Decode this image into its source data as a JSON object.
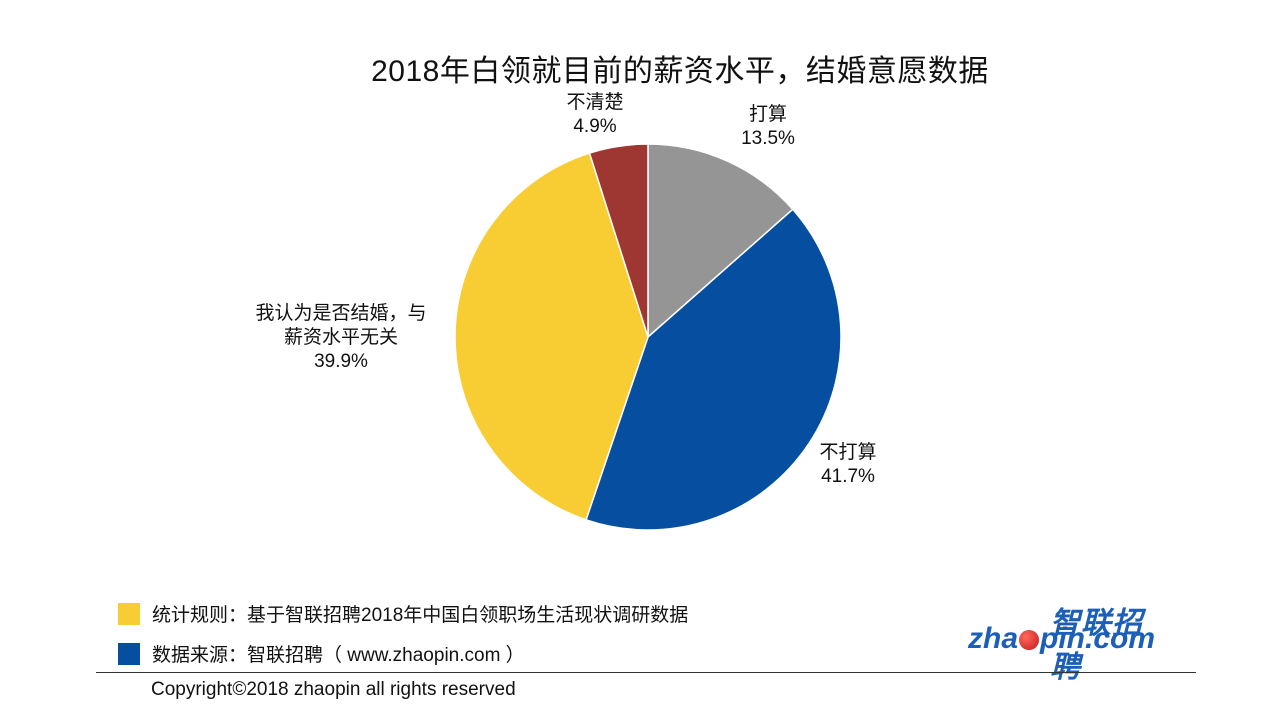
{
  "chart_data": {
    "type": "pie",
    "title": "2018年白领就目前的薪资水平，结婚意愿数据",
    "start_angle_deg": 0,
    "direction": "clockwise",
    "slices": [
      {
        "label_lines": [
          "打算"
        ],
        "value": 13.5,
        "value_text": "13.5%",
        "color": "#959595"
      },
      {
        "label_lines": [
          "不打算"
        ],
        "value": 41.7,
        "value_text": "41.7%",
        "color": "#064ea0"
      },
      {
        "label_lines": [
          "我认为是否结婚，与",
          "薪资水平无关"
        ],
        "value": 39.9,
        "value_text": "39.9%",
        "color": "#f8cd33"
      },
      {
        "label_lines": [
          "不清楚"
        ],
        "value": 4.9,
        "value_text": "4.9%",
        "color": "#9e3731"
      }
    ]
  },
  "legend": {
    "items": [
      {
        "text": "统计规则：基于智联招聘2018年中国白领职场生活现状调研数据",
        "color": "#f8cd33"
      },
      {
        "text": "数据来源：智联招聘（ www.zhaopin.com ）",
        "color": "#064ea0"
      }
    ]
  },
  "footer": {
    "copyright": "Copyright©2018 zhaopin all rights reserved"
  },
  "logo": {
    "chinese": "智联招聘",
    "english_prefix": "zha",
    "english_suffix": "pin.com"
  }
}
